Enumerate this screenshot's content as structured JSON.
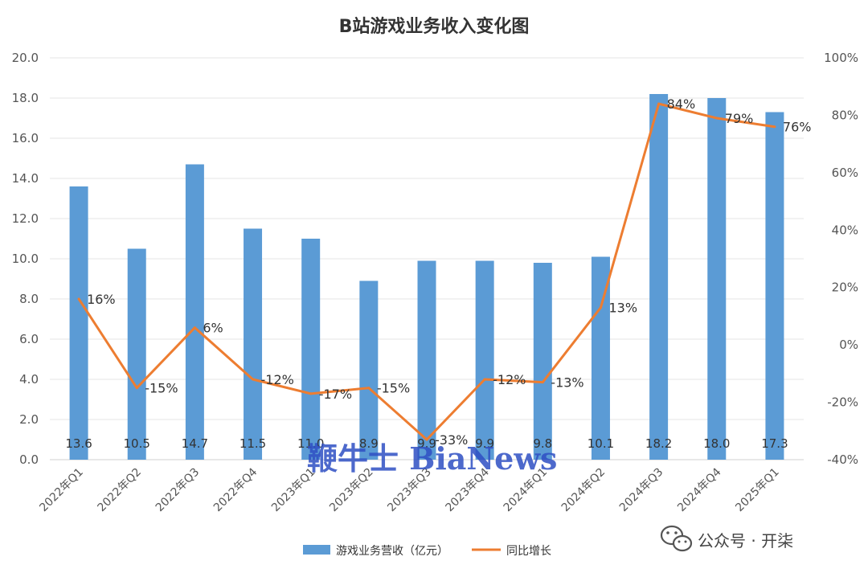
{
  "colors": {
    "bar": "#5b9bd5",
    "line": "#ed7d31",
    "grid": "#e6e6e6",
    "axis": "#d0d0d0"
  },
  "watermarks": {
    "bianews": "鞭牛士 BiaNews",
    "wechat": "公众号 · 开柒",
    "wechat_icon": "wechat-logo-icon"
  },
  "chart_data": {
    "type": "bar",
    "title": "B站游戏业务收入变化图",
    "categories": [
      "2022年Q1",
      "2022年Q2",
      "2022年Q3",
      "2022年Q4",
      "2023年Q1",
      "2023年Q2",
      "2023年Q3",
      "2023年Q4",
      "2024年Q1",
      "2024年Q2",
      "2024年Q3",
      "2024年Q4",
      "2025年Q1"
    ],
    "series": [
      {
        "name": "游戏业务营收（亿元）",
        "type": "bar",
        "axis": "left",
        "values": [
          13.6,
          10.5,
          14.7,
          11.5,
          11.0,
          8.9,
          9.9,
          9.9,
          9.8,
          10.1,
          18.2,
          18.0,
          17.3
        ],
        "labels": [
          "13.6",
          "10.5",
          "14.7",
          "11.5",
          "11.0",
          "8.9",
          "9.9",
          "9.9",
          "9.8",
          "10.1",
          "18.2",
          "18.0",
          "17.3"
        ]
      },
      {
        "name": "同比增长",
        "type": "line",
        "axis": "right",
        "values": [
          16,
          -15,
          6,
          -12,
          -17,
          -15,
          -33,
          -12,
          -13,
          13,
          84,
          79,
          76
        ],
        "labels": [
          "16%",
          "-15%",
          "6%",
          "-12%",
          "-17%",
          "-15%",
          "-33%",
          "-12%",
          "-13%",
          "13%",
          "84%",
          "79%",
          "76%"
        ]
      }
    ],
    "y_left": {
      "range": [
        0,
        20
      ],
      "ticks": [
        "0.0",
        "2.0",
        "4.0",
        "6.0",
        "8.0",
        "10.0",
        "12.0",
        "14.0",
        "16.0",
        "18.0",
        "20.0"
      ]
    },
    "y_right": {
      "range": [
        -40,
        100
      ],
      "ticks": [
        "-40%",
        "-20%",
        "0%",
        "20%",
        "40%",
        "60%",
        "80%",
        "100%"
      ]
    },
    "grid": true,
    "legend": "bottom"
  }
}
